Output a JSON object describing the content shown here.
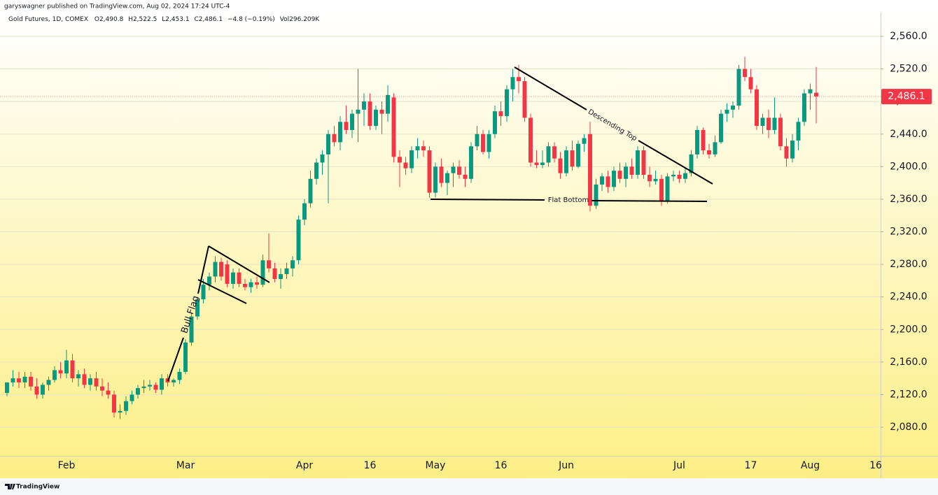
{
  "chart_data": {
    "type": "candlestick",
    "publisher": "garyswagner published on TradingView.com, Aug 02, 2024 17:24 UTC-4",
    "legend": {
      "symbol": "Gold Futures, 1D, COMEX",
      "open": "O2,490.8",
      "high": "H2,522.5",
      "low": "L2,453.1",
      "close": "C2,486.1",
      "change": "−4.8 (−0.19%)",
      "volume": "Vol296.209K"
    },
    "annotations": [
      "Bull Flag",
      "Descending Top",
      "Flat Bottom"
    ],
    "brand": "TradingView",
    "up_color": "#089981",
    "down_color": "#f23645",
    "last_price": {
      "value": 2486.1,
      "label": "2,486.1"
    },
    "ylim": [
      2044.8,
      2589.2
    ],
    "yticks": [
      {
        "value": 2080,
        "label": "2,080.0"
      },
      {
        "value": 2120,
        "label": "2,120.0"
      },
      {
        "value": 2160,
        "label": "2,160.0"
      },
      {
        "value": 2200,
        "label": "2,200.0"
      },
      {
        "value": 2240,
        "label": "2,240.0"
      },
      {
        "value": 2280,
        "label": "2,280.0"
      },
      {
        "value": 2320,
        "label": "2,320.0"
      },
      {
        "value": 2360,
        "label": "2,360.0"
      },
      {
        "value": 2400,
        "label": "2,400.0"
      },
      {
        "value": 2440,
        "label": "2,440.0"
      },
      {
        "value": 2480,
        "label": "2,480.0"
      },
      {
        "value": 2520,
        "label": "2,520.0"
      },
      {
        "value": 2560,
        "label": "2,560.0"
      }
    ],
    "grid": true,
    "categories": [
      null,
      null,
      null,
      null,
      null,
      null,
      null,
      null,
      null,
      null,
      "Feb",
      null,
      null,
      null,
      null,
      null,
      null,
      null,
      null,
      null,
      null,
      null,
      null,
      null,
      null,
      null,
      null,
      null,
      null,
      null,
      "Mar",
      null,
      null,
      null,
      null,
      null,
      null,
      null,
      null,
      null,
      null,
      null,
      null,
      null,
      null,
      null,
      null,
      null,
      null,
      null,
      "Apr",
      null,
      null,
      null,
      null,
      null,
      null,
      null,
      null,
      null,
      null,
      "16",
      null,
      null,
      null,
      null,
      null,
      null,
      null,
      null,
      null,
      null,
      "May",
      null,
      null,
      null,
      null,
      null,
      null,
      null,
      null,
      null,
      null,
      "16",
      null,
      null,
      null,
      null,
      null,
      null,
      null,
      null,
      null,
      null,
      "Jun",
      null,
      null,
      null,
      null,
      null,
      null,
      null,
      null,
      null,
      null,
      null,
      null,
      null,
      null,
      null,
      null,
      null,
      null,
      "Jul",
      null,
      null,
      null,
      null,
      null,
      null,
      null,
      null,
      null,
      null,
      null,
      "17",
      null,
      null,
      null,
      null,
      null,
      null,
      null,
      null,
      null,
      "Aug",
      null,
      null,
      null,
      null,
      null,
      null,
      null,
      null,
      null,
      null,
      "16"
    ],
    "open": [
      2122,
      2135,
      2140,
      2135,
      2142,
      2130,
      2120,
      2132,
      2138,
      2150,
      2146,
      2162,
      2140,
      2145,
      2132,
      2140,
      2130,
      2125,
      2120,
      2098,
      2100,
      2112,
      2120,
      2128,
      2130,
      2132,
      2126,
      2140,
      2135,
      2138,
      2148,
      2184,
      2216,
      2237,
      2255,
      2265,
      2283,
      2280,
      2256,
      2270,
      2256,
      2252,
      2258,
      2255,
      2285,
      2275,
      2262,
      2268,
      2275,
      2285,
      2335,
      2355,
      2385,
      2405,
      2415,
      2440,
      2430,
      2455,
      2445,
      2465,
      2470,
      2480,
      2450,
      2470,
      2465,
      2485,
      2412,
      2405,
      2398,
      2420,
      2425,
      2420,
      2368,
      2400,
      2380,
      2392,
      2400,
      2390,
      2385,
      2425,
      2440,
      2418,
      2440,
      2468,
      2462,
      2495,
      2510,
      2505,
      2460,
      2405,
      2402,
      2405,
      2425,
      2410,
      2392,
      2420,
      2400,
      2428,
      2440,
      2352,
      2378,
      2388,
      2375,
      2395,
      2385,
      2400,
      2390,
      2420,
      2390,
      2382,
      2385,
      2358,
      2388,
      2390,
      2385,
      2392,
      2415,
      2445,
      2420,
      2415,
      2430,
      2465,
      2470,
      2475,
      2520,
      2510,
      2495,
      2450,
      2460,
      2445,
      2460,
      2425,
      2410,
      2432,
      2455,
      2490,
      2490.8,
      null,
      null,
      null,
      null,
      null,
      null,
      null,
      null,
      null,
      null
    ],
    "high": [
      2135,
      2150,
      2148,
      2148,
      2148,
      2140,
      2135,
      2142,
      2155,
      2160,
      2175,
      2170,
      2150,
      2152,
      2145,
      2148,
      2140,
      2135,
      2125,
      2108,
      2118,
      2125,
      2132,
      2138,
      2138,
      2135,
      2145,
      2145,
      2140,
      2152,
      2188,
      2220,
      2240,
      2262,
      2270,
      2290,
      2288,
      2285,
      2275,
      2275,
      2262,
      2262,
      2265,
      2292,
      2318,
      2282,
      2275,
      2282,
      2290,
      2340,
      2360,
      2395,
      2410,
      2420,
      2445,
      2450,
      2462,
      2475,
      2470,
      2520,
      2490,
      2490,
      2475,
      2480,
      2500,
      2490,
      2420,
      2412,
      2425,
      2435,
      2432,
      2425,
      2405,
      2410,
      2395,
      2405,
      2408,
      2400,
      2430,
      2450,
      2445,
      2445,
      2475,
      2480,
      2500,
      2520,
      2525,
      2510,
      2465,
      2420,
      2420,
      2430,
      2430,
      2418,
      2425,
      2432,
      2432,
      2440,
      2455,
      2385,
      2392,
      2395,
      2400,
      2405,
      2405,
      2410,
      2425,
      2425,
      2400,
      2395,
      2390,
      2392,
      2395,
      2395,
      2398,
      2420,
      2450,
      2448,
      2428,
      2438,
      2470,
      2478,
      2480,
      2525,
      2535,
      2520,
      2500,
      2465,
      2470,
      2485,
      2465,
      2435,
      2440,
      2460,
      2495,
      2502,
      2522.5,
      null,
      null,
      null,
      null,
      null,
      null,
      null,
      null,
      null,
      null
    ],
    "low": [
      2118,
      2130,
      2128,
      2128,
      2125,
      2115,
      2115,
      2125,
      2135,
      2140,
      2140,
      2135,
      2130,
      2128,
      2125,
      2125,
      2118,
      2115,
      2092,
      2090,
      2095,
      2108,
      2115,
      2122,
      2125,
      2122,
      2120,
      2130,
      2130,
      2133,
      2145,
      2180,
      2212,
      2232,
      2248,
      2258,
      2260,
      2252,
      2250,
      2252,
      2248,
      2245,
      2250,
      2252,
      2270,
      2258,
      2250,
      2262,
      2265,
      2280,
      2328,
      2350,
      2378,
      2390,
      2355,
      2425,
      2420,
      2440,
      2435,
      2430,
      2450,
      2445,
      2445,
      2440,
      2455,
      2405,
      2375,
      2390,
      2392,
      2410,
      2412,
      2362,
      2362,
      2375,
      2365,
      2375,
      2385,
      2375,
      2380,
      2420,
      2415,
      2410,
      2435,
      2450,
      2455,
      2480,
      2490,
      2455,
      2400,
      2398,
      2398,
      2400,
      2405,
      2385,
      2388,
      2395,
      2398,
      2418,
      2345,
      2348,
      2370,
      2368,
      2370,
      2380,
      2375,
      2385,
      2385,
      2385,
      2375,
      2378,
      2352,
      2355,
      2382,
      2380,
      2380,
      2388,
      2410,
      2415,
      2410,
      2412,
      2428,
      2455,
      2460,
      2470,
      2505,
      2490,
      2445,
      2440,
      2435,
      2440,
      2420,
      2400,
      2405,
      2420,
      2450,
      2470,
      2453.1,
      null,
      null,
      null,
      null,
      null,
      null,
      null,
      null,
      null,
      null
    ],
    "close": [
      2135,
      2140,
      2135,
      2142,
      2130,
      2120,
      2132,
      2138,
      2150,
      2146,
      2162,
      2140,
      2145,
      2132,
      2140,
      2130,
      2125,
      2120,
      2098,
      2100,
      2112,
      2120,
      2128,
      2130,
      2132,
      2126,
      2140,
      2135,
      2138,
      2148,
      2184,
      2216,
      2237,
      2255,
      2265,
      2283,
      2265,
      2256,
      2270,
      2256,
      2252,
      2258,
      2255,
      2285,
      2275,
      2262,
      2268,
      2275,
      2285,
      2335,
      2355,
      2385,
      2405,
      2415,
      2440,
      2430,
      2455,
      2445,
      2465,
      2470,
      2480,
      2450,
      2470,
      2465,
      2488,
      2412,
      2405,
      2398,
      2420,
      2425,
      2420,
      2368,
      2400,
      2380,
      2392,
      2400,
      2390,
      2385,
      2425,
      2440,
      2418,
      2440,
      2468,
      2462,
      2495,
      2510,
      2505,
      2460,
      2405,
      2402,
      2405,
      2425,
      2410,
      2392,
      2420,
      2400,
      2428,
      2435,
      2352,
      2378,
      2388,
      2375,
      2395,
      2385,
      2400,
      2390,
      2420,
      2390,
      2382,
      2385,
      2358,
      2388,
      2390,
      2385,
      2392,
      2415,
      2445,
      2420,
      2415,
      2430,
      2465,
      2470,
      2475,
      2520,
      2510,
      2495,
      2450,
      2460,
      2445,
      2460,
      2425,
      2410,
      2432,
      2455,
      2490,
      2495,
      2486.1,
      null,
      null,
      null,
      null,
      null,
      null,
      null,
      null,
      null,
      null
    ]
  }
}
